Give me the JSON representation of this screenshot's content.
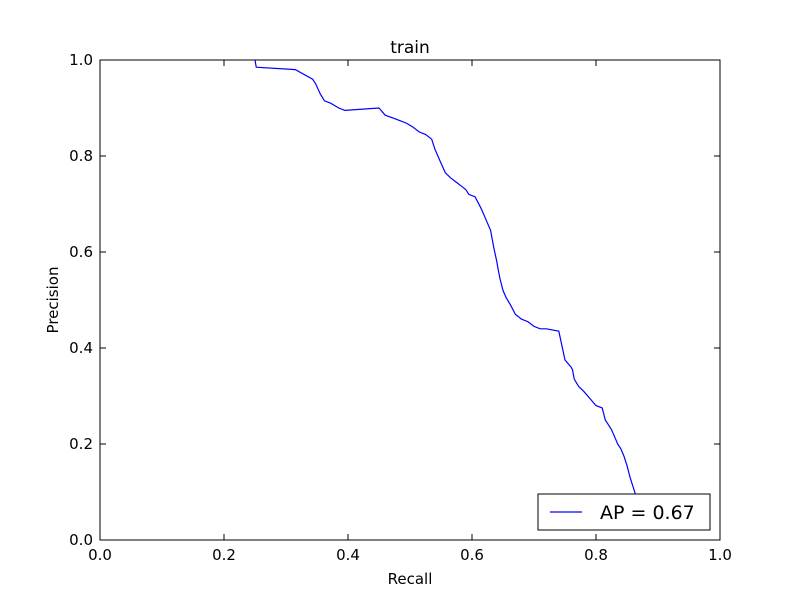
{
  "chart_data": {
    "type": "line",
    "title": "train",
    "xlabel": "Recall",
    "ylabel": "Precision",
    "xlim": [
      0.0,
      1.0
    ],
    "ylim": [
      0.0,
      1.0
    ],
    "xticks": [
      "0.0",
      "0.2",
      "0.4",
      "0.6",
      "0.8",
      "1.0"
    ],
    "yticks": [
      "0.0",
      "0.2",
      "0.4",
      "0.6",
      "0.8",
      "1.0"
    ],
    "grid": false,
    "legend_position": "lower-right",
    "colors": {
      "line": "#0000ff"
    },
    "series": [
      {
        "name": "AP = 0.67",
        "x": [
          0.25,
          0.252,
          0.315,
          0.343,
          0.348,
          0.355,
          0.362,
          0.372,
          0.385,
          0.395,
          0.45,
          0.46,
          0.475,
          0.485,
          0.495,
          0.505,
          0.515,
          0.525,
          0.535,
          0.54,
          0.545,
          0.55,
          0.557,
          0.565,
          0.575,
          0.585,
          0.59,
          0.595,
          0.605,
          0.615,
          0.625,
          0.63,
          0.635,
          0.64,
          0.642,
          0.645,
          0.65,
          0.655,
          0.662,
          0.67,
          0.68,
          0.69,
          0.7,
          0.71,
          0.72,
          0.74,
          0.75,
          0.76,
          0.762,
          0.765,
          0.772,
          0.78,
          0.79,
          0.8,
          0.81,
          0.815,
          0.825,
          0.83,
          0.835,
          0.84,
          0.845,
          0.85,
          0.855,
          0.86,
          0.865,
          0.87,
          0.875,
          0.88,
          0.882
        ],
        "y": [
          1.0,
          0.985,
          0.98,
          0.96,
          0.95,
          0.93,
          0.915,
          0.91,
          0.9,
          0.895,
          0.9,
          0.885,
          0.878,
          0.873,
          0.868,
          0.86,
          0.85,
          0.845,
          0.835,
          0.815,
          0.8,
          0.785,
          0.765,
          0.755,
          0.745,
          0.735,
          0.73,
          0.72,
          0.715,
          0.69,
          0.66,
          0.645,
          0.61,
          0.58,
          0.565,
          0.545,
          0.52,
          0.505,
          0.49,
          0.47,
          0.46,
          0.455,
          0.445,
          0.44,
          0.44,
          0.435,
          0.375,
          0.36,
          0.355,
          0.335,
          0.32,
          0.31,
          0.295,
          0.28,
          0.275,
          0.25,
          0.23,
          0.215,
          0.2,
          0.19,
          0.175,
          0.155,
          0.13,
          0.11,
          0.09,
          0.085,
          0.082,
          0.08,
          0.08
        ]
      }
    ]
  }
}
